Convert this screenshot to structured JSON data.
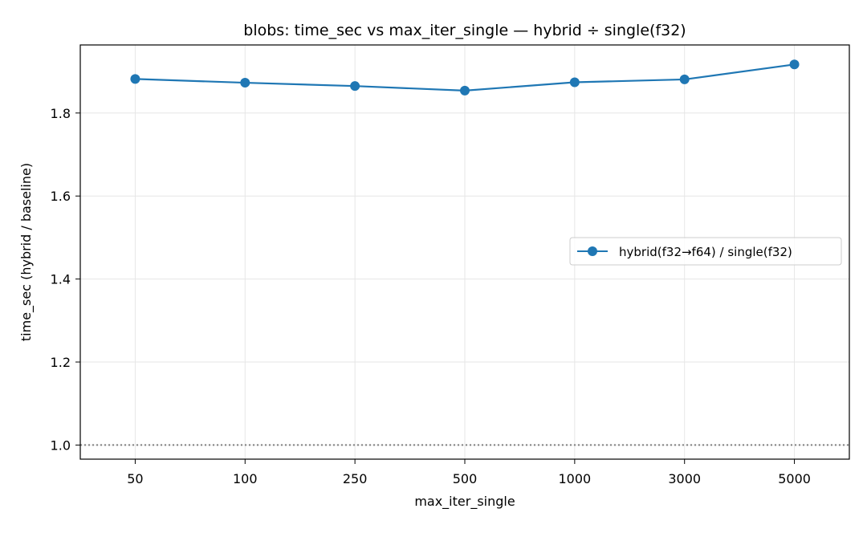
{
  "chart_data": {
    "type": "line",
    "title": "blobs: time_sec vs max_iter_single — hybrid ÷ single(f32)",
    "xlabel": "max_iter_single",
    "ylabel": "time_sec (hybrid / baseline)",
    "categories": [
      "50",
      "100",
      "250",
      "500",
      "1000",
      "3000",
      "5000"
    ],
    "series": [
      {
        "name": "hybrid(f32→f64) / single(f32)",
        "values": [
          1.882,
          1.873,
          1.865,
          1.854,
          1.874,
          1.881,
          1.917
        ],
        "color": "#1f77b4",
        "marker": "circle"
      }
    ],
    "reference_line": {
      "y": 1.0,
      "style": "dotted",
      "color": "#808080"
    },
    "ylim": [
      0.966,
      1.964
    ],
    "yticks": [
      1.0,
      1.2,
      1.4,
      1.6,
      1.8
    ],
    "ytick_labels": [
      "1.0",
      "1.2",
      "1.4",
      "1.6",
      "1.8"
    ],
    "grid": true,
    "legend_position": "center-right"
  }
}
